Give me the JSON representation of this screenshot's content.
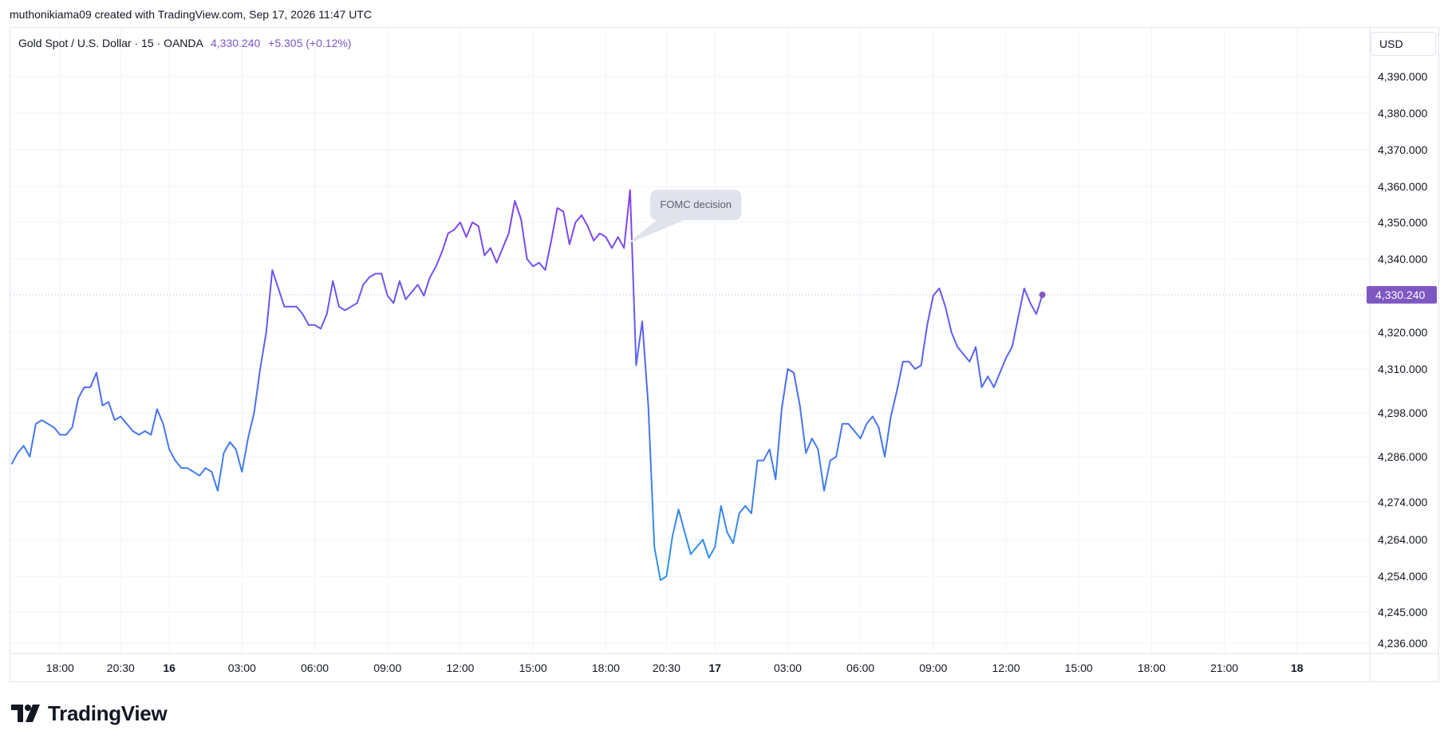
{
  "credit": "muthonikiama09 created with TradingView.com, Sep 17, 2026 11:47 UTC",
  "legend": {
    "symbol": "Gold Spot / U.S. Dollar · 15 · OANDA",
    "price": "4,330.240",
    "change": "+5.305 (+0.12%)"
  },
  "unit_button": "USD",
  "brand": "TradingView",
  "colors": {
    "line_start": "#4a6ff0",
    "line_peak": "#8a3ef0",
    "line_low": "#2d95e8",
    "last_price_bg": "#7e57c2",
    "grid": "#f0f3fa"
  },
  "chart_data": {
    "type": "line",
    "title": "",
    "xlabel": "",
    "ylabel": "",
    "ylim": [
      4230,
      4396
    ],
    "y_ticks": [
      "4,390.000",
      "4,380.000",
      "4,370.000",
      "4,360.000",
      "4,350.000",
      "4,340.000",
      "4,320.000",
      "4,310.000",
      "4,298.000",
      "4,286.000",
      "4,274.000",
      "4,264.000",
      "4,254.000",
      "4,245.000",
      "4,236.000"
    ],
    "x_ticks": [
      {
        "label": "18:00",
        "i": 8,
        "bold": false
      },
      {
        "label": "20:30",
        "i": 18,
        "bold": false
      },
      {
        "label": "16",
        "i": 26,
        "bold": true
      },
      {
        "label": "03:00",
        "i": 38,
        "bold": false
      },
      {
        "label": "06:00",
        "i": 50,
        "bold": false
      },
      {
        "label": "09:00",
        "i": 62,
        "bold": false
      },
      {
        "label": "12:00",
        "i": 74,
        "bold": false
      },
      {
        "label": "15:00",
        "i": 86,
        "bold": false
      },
      {
        "label": "18:00",
        "i": 98,
        "bold": false
      },
      {
        "label": "20:30",
        "i": 108,
        "bold": false
      },
      {
        "label": "17",
        "i": 116,
        "bold": true
      },
      {
        "label": "03:00",
        "i": 128,
        "bold": false
      },
      {
        "label": "06:00",
        "i": 140,
        "bold": false
      },
      {
        "label": "09:00",
        "i": 152,
        "bold": false
      },
      {
        "label": "12:00",
        "i": 164,
        "bold": false
      },
      {
        "label": "15:00",
        "i": 176,
        "bold": false
      },
      {
        "label": "18:00",
        "i": 188,
        "bold": false
      },
      {
        "label": "21:00",
        "i": 200,
        "bold": false
      },
      {
        "label": "18",
        "i": 212,
        "bold": true
      }
    ],
    "x_range": [
      -0.2,
      224
    ],
    "series": [
      {
        "values": [
          4284,
          4287,
          4289,
          4286,
          4295,
          4296,
          4295,
          4294,
          4292,
          4292,
          4294,
          4302,
          4305,
          4305,
          4309,
          4300,
          4301,
          4296,
          4297,
          4295,
          4293,
          4292,
          4293,
          4292,
          4299,
          4295,
          4288,
          4285,
          4283,
          4283,
          4282,
          4281,
          4283,
          4282,
          4277,
          4287,
          4290,
          4288,
          4282,
          4291,
          4298,
          4310,
          4320,
          4337,
          4332,
          4327,
          4327,
          4327,
          4325,
          4322,
          4322,
          4321,
          4325,
          4334,
          4327,
          4326,
          4327,
          4328,
          4333,
          4335,
          4336,
          4336,
          4330,
          4328,
          4334,
          4329,
          4331,
          4333,
          4330,
          4335,
          4338,
          4342,
          4347,
          4348,
          4350,
          4346,
          4350,
          4349,
          4341,
          4343,
          4339,
          4343,
          4347,
          4356,
          4351,
          4340,
          4338,
          4339,
          4337,
          4345,
          4354,
          4353,
          4344,
          4350,
          4352,
          4349,
          4345,
          4347,
          4346,
          4343,
          4346,
          4343,
          4359,
          4311,
          4323,
          4300,
          4262,
          4253,
          4254,
          4265,
          4272,
          4266,
          4260,
          4262,
          4264,
          4259,
          4262,
          4273,
          4266,
          4263,
          4271,
          4273,
          4271,
          4285,
          4285,
          4288,
          4280,
          4299,
          4310,
          4309,
          4300,
          4287,
          4291,
          4288,
          4277,
          4285,
          4286,
          4295,
          4295,
          4293,
          4291,
          4295,
          4297,
          4294,
          4286,
          4297,
          4304,
          4312,
          4312,
          4310,
          4311,
          4322,
          4330,
          4332,
          4327,
          4320,
          4316,
          4314,
          4312,
          4316,
          4305,
          4308,
          4305,
          4309,
          4313,
          4316,
          4324,
          4332,
          4328,
          4325,
          4330.24
        ]
      }
    ],
    "last_price": "4,330.240",
    "annotations": [
      {
        "text": "FOMC decision",
        "i": 101
      }
    ]
  }
}
